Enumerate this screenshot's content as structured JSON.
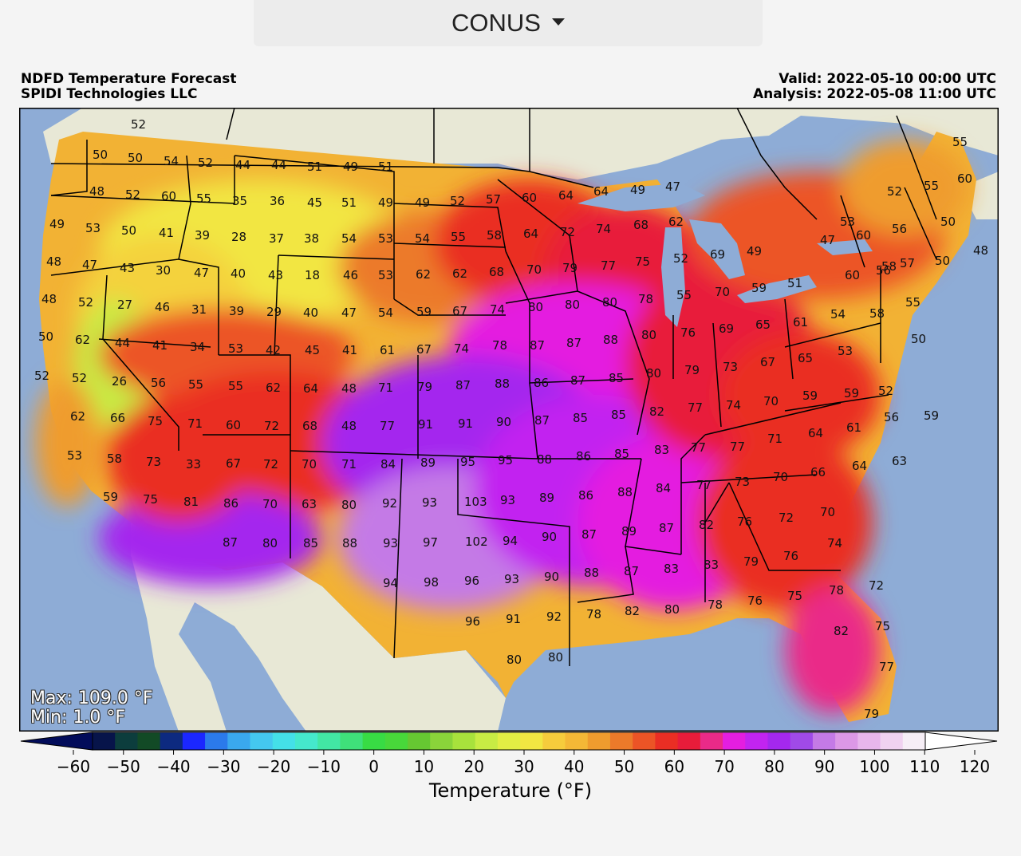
{
  "region_selector": {
    "label": "CONUS"
  },
  "header": {
    "title": "NDFD Temperature Forecast",
    "provider": "SPIDI Technologies LLC",
    "valid": "Valid: 2022-05-10 00:00 UTC",
    "analysis": "Analysis: 2022-05-08 11:00 UTC"
  },
  "stats": {
    "max": "Max: 109.0 °F",
    "min": "Min: 1.0 °F"
  },
  "colorbar": {
    "title": "Temperature (°F)",
    "ticks": [
      "−60",
      "−50",
      "−40",
      "−30",
      "−20",
      "−10",
      "0",
      "10",
      "20",
      "30",
      "40",
      "50",
      "60",
      "70",
      "80",
      "90",
      "100",
      "110",
      "120"
    ],
    "colors": [
      "#07144a",
      "#0c3d3d",
      "#124a26",
      "#0d2a80",
      "#1b27ff",
      "#2b7aeb",
      "#3aa8ee",
      "#44c8ef",
      "#44e0e8",
      "#45e8cc",
      "#42e6a4",
      "#3fe07a",
      "#38dc44",
      "#48d83a",
      "#66c832",
      "#8ad43a",
      "#a8e23c",
      "#c8ec44",
      "#e2ee44",
      "#f2e642",
      "#f6cc3c",
      "#f4b836",
      "#ef9c2e",
      "#ec7a2a",
      "#ec5426",
      "#ea2e24",
      "#e81c3a",
      "#ea2a88",
      "#e41ee0",
      "#c224f0",
      "#a428ee",
      "#a04ae8",
      "#c47ae6",
      "#dc98e6",
      "#e8b6ec",
      "#f0d2f0",
      "#f6eef6"
    ],
    "min_color": "#020c5a",
    "max_color": "#ffffff"
  },
  "map": {
    "colors": {
      "ocean": "#8eacd6",
      "land_background": "#e8e8d6",
      "frame": "#000000"
    },
    "temperature_labels": [
      [
        "52",
        0,
        0
      ],
      [
        "50",
        0,
        0
      ],
      [
        "50",
        0,
        0
      ],
      [
        "54",
        0,
        0
      ],
      [
        "52",
        0,
        0
      ],
      [
        "44",
        0,
        0
      ],
      [
        "44",
        0,
        0
      ],
      [
        "51",
        0,
        0
      ],
      [
        "49",
        0,
        0
      ],
      [
        "51",
        0,
        0
      ],
      [
        "48",
        0,
        0
      ],
      [
        "52",
        0,
        0
      ],
      [
        "60",
        0,
        0
      ],
      [
        "55",
        0,
        0
      ],
      [
        "35",
        0,
        0
      ],
      [
        "36",
        0,
        0
      ],
      [
        "45",
        0,
        0
      ],
      [
        "51",
        0,
        0
      ],
      [
        "49",
        0,
        0
      ],
      [
        "49",
        0,
        0
      ],
      [
        "52",
        0,
        0
      ],
      [
        "57",
        0,
        0
      ],
      [
        "60",
        0,
        0
      ],
      [
        "64",
        0,
        0
      ],
      [
        "64",
        0,
        0
      ],
      [
        "49",
        0,
        0
      ],
      [
        "47",
        0,
        0
      ],
      [
        "52",
        0,
        0
      ],
      [
        "55",
        0,
        0
      ],
      [
        "60",
        0,
        0
      ],
      [
        "55",
        0,
        0
      ],
      [
        "49",
        0,
        0
      ],
      [
        "53",
        0,
        0
      ],
      [
        "50",
        0,
        0
      ],
      [
        "41",
        0,
        0
      ],
      [
        "39",
        0,
        0
      ],
      [
        "28",
        0,
        0
      ],
      [
        "37",
        0,
        0
      ],
      [
        "38",
        0,
        0
      ],
      [
        "54",
        0,
        0
      ],
      [
        "53",
        0,
        0
      ],
      [
        "54",
        0,
        0
      ],
      [
        "55",
        0,
        0
      ],
      [
        "58",
        0,
        0
      ],
      [
        "64",
        0,
        0
      ],
      [
        "72",
        0,
        0
      ],
      [
        "74",
        0,
        0
      ],
      [
        "68",
        0,
        0
      ],
      [
        "62",
        0,
        0
      ],
      [
        "53",
        0,
        0
      ],
      [
        "56",
        0,
        0
      ],
      [
        "50",
        0,
        0
      ],
      [
        "48",
        0,
        0
      ],
      [
        "47",
        0,
        0
      ],
      [
        "43",
        0,
        0
      ],
      [
        "30",
        0,
        0
      ],
      [
        "47",
        0,
        0
      ],
      [
        "40",
        0,
        0
      ],
      [
        "43",
        0,
        0
      ],
      [
        "18",
        0,
        0
      ],
      [
        "46",
        0,
        0
      ],
      [
        "53",
        0,
        0
      ],
      [
        "62",
        0,
        0
      ],
      [
        "62",
        0,
        0
      ],
      [
        "68",
        0,
        0
      ],
      [
        "70",
        0,
        0
      ],
      [
        "79",
        0,
        0
      ],
      [
        "77",
        0,
        0
      ],
      [
        "75",
        0,
        0
      ],
      [
        "52",
        0,
        0
      ],
      [
        "69",
        0,
        0
      ],
      [
        "49",
        0,
        0
      ],
      [
        "47",
        0,
        0
      ],
      [
        "60",
        0,
        0
      ],
      [
        "56",
        0,
        0
      ],
      [
        "57",
        0,
        0
      ],
      [
        "50",
        0,
        0
      ],
      [
        "48",
        0,
        0
      ],
      [
        "48",
        0,
        0
      ],
      [
        "52",
        0,
        0
      ],
      [
        "27",
        0,
        0
      ],
      [
        "46",
        0,
        0
      ],
      [
        "31",
        0,
        0
      ],
      [
        "39",
        0,
        0
      ],
      [
        "29",
        0,
        0
      ],
      [
        "40",
        0,
        0
      ],
      [
        "47",
        0,
        0
      ],
      [
        "54",
        0,
        0
      ],
      [
        "59",
        0,
        0
      ],
      [
        "67",
        0,
        0
      ],
      [
        "74",
        0,
        0
      ],
      [
        "80",
        0,
        0
      ],
      [
        "80",
        0,
        0
      ],
      [
        "80",
        0,
        0
      ],
      [
        "78",
        0,
        0
      ],
      [
        "55",
        0,
        0
      ],
      [
        "70",
        0,
        0
      ],
      [
        "59",
        0,
        0
      ],
      [
        "51",
        0,
        0
      ],
      [
        "60",
        0,
        0
      ],
      [
        "58",
        0,
        0
      ],
      [
        "55",
        0,
        0
      ],
      [
        "50",
        0,
        0
      ],
      [
        "62",
        0,
        0
      ],
      [
        "44",
        0,
        0
      ],
      [
        "41",
        0,
        0
      ],
      [
        "34",
        0,
        0
      ],
      [
        "53",
        0,
        0
      ],
      [
        "42",
        0,
        0
      ],
      [
        "45",
        0,
        0
      ],
      [
        "41",
        0,
        0
      ],
      [
        "61",
        0,
        0
      ],
      [
        "67",
        0,
        0
      ],
      [
        "74",
        0,
        0
      ],
      [
        "78",
        0,
        0
      ],
      [
        "87",
        0,
        0
      ],
      [
        "87",
        0,
        0
      ],
      [
        "88",
        0,
        0
      ],
      [
        "80",
        0,
        0
      ],
      [
        "76",
        0,
        0
      ],
      [
        "69",
        0,
        0
      ],
      [
        "65",
        0,
        0
      ],
      [
        "61",
        0,
        0
      ],
      [
        "54",
        0,
        0
      ],
      [
        "58",
        0,
        0
      ],
      [
        "50",
        0,
        0
      ],
      [
        "52",
        0,
        0
      ],
      [
        "52",
        0,
        0
      ],
      [
        "26",
        0,
        0
      ],
      [
        "56",
        0,
        0
      ],
      [
        "55",
        0,
        0
      ],
      [
        "55",
        0,
        0
      ],
      [
        "62",
        0,
        0
      ],
      [
        "64",
        0,
        0
      ],
      [
        "48",
        0,
        0
      ],
      [
        "71",
        0,
        0
      ],
      [
        "79",
        0,
        0
      ],
      [
        "87",
        0,
        0
      ],
      [
        "88",
        0,
        0
      ],
      [
        "86",
        0,
        0
      ],
      [
        "87",
        0,
        0
      ],
      [
        "85",
        0,
        0
      ],
      [
        "80",
        0,
        0
      ],
      [
        "79",
        0,
        0
      ],
      [
        "73",
        0,
        0
      ],
      [
        "67",
        0,
        0
      ],
      [
        "65",
        0,
        0
      ],
      [
        "53",
        0,
        0
      ],
      [
        "62",
        0,
        0
      ],
      [
        "66",
        0,
        0
      ],
      [
        "75",
        0,
        0
      ],
      [
        "71",
        0,
        0
      ],
      [
        "60",
        0,
        0
      ],
      [
        "72",
        0,
        0
      ],
      [
        "68",
        0,
        0
      ],
      [
        "48",
        0,
        0
      ],
      [
        "77",
        0,
        0
      ],
      [
        "91",
        0,
        0
      ],
      [
        "91",
        0,
        0
      ],
      [
        "90",
        0,
        0
      ],
      [
        "87",
        0,
        0
      ],
      [
        "85",
        0,
        0
      ],
      [
        "85",
        0,
        0
      ],
      [
        "82",
        0,
        0
      ],
      [
        "77",
        0,
        0
      ],
      [
        "74",
        0,
        0
      ],
      [
        "70",
        0,
        0
      ],
      [
        "59",
        0,
        0
      ],
      [
        "59",
        0,
        0
      ],
      [
        "52",
        0,
        0
      ],
      [
        "56",
        0,
        0
      ],
      [
        "59",
        0,
        0
      ],
      [
        "53",
        0,
        0
      ],
      [
        "58",
        0,
        0
      ],
      [
        "73",
        0,
        0
      ],
      [
        "33",
        0,
        0
      ],
      [
        "67",
        0,
        0
      ],
      [
        "72",
        0,
        0
      ],
      [
        "70",
        0,
        0
      ],
      [
        "71",
        0,
        0
      ],
      [
        "84",
        0,
        0
      ],
      [
        "89",
        0,
        0
      ],
      [
        "95",
        0,
        0
      ],
      [
        "95",
        0,
        0
      ],
      [
        "88",
        0,
        0
      ],
      [
        "86",
        0,
        0
      ],
      [
        "85",
        0,
        0
      ],
      [
        "83",
        0,
        0
      ],
      [
        "77",
        0,
        0
      ],
      [
        "77",
        0,
        0
      ],
      [
        "71",
        0,
        0
      ],
      [
        "64",
        0,
        0
      ],
      [
        "61",
        0,
        0
      ],
      [
        "59",
        0,
        0
      ],
      [
        "75",
        0,
        0
      ],
      [
        "81",
        0,
        0
      ],
      [
        "86",
        0,
        0
      ],
      [
        "70",
        0,
        0
      ],
      [
        "63",
        0,
        0
      ],
      [
        "80",
        0,
        0
      ],
      [
        "92",
        0,
        0
      ],
      [
        "93",
        0,
        0
      ],
      [
        "103",
        0,
        0
      ],
      [
        "93",
        0,
        0
      ],
      [
        "89",
        0,
        0
      ],
      [
        "86",
        0,
        0
      ],
      [
        "88",
        0,
        0
      ],
      [
        "84",
        0,
        0
      ],
      [
        "77",
        0,
        0
      ],
      [
        "73",
        0,
        0
      ],
      [
        "70",
        0,
        0
      ],
      [
        "66",
        0,
        0
      ],
      [
        "64",
        0,
        0
      ],
      [
        "63",
        0,
        0
      ],
      [
        "87",
        0,
        0
      ],
      [
        "80",
        0,
        0
      ],
      [
        "85",
        0,
        0
      ],
      [
        "88",
        0,
        0
      ],
      [
        "93",
        0,
        0
      ],
      [
        "97",
        0,
        0
      ],
      [
        "102",
        0,
        0
      ],
      [
        "94",
        0,
        0
      ],
      [
        "90",
        0,
        0
      ],
      [
        "87",
        0,
        0
      ],
      [
        "89",
        0,
        0
      ],
      [
        "87",
        0,
        0
      ],
      [
        "82",
        0,
        0
      ],
      [
        "76",
        0,
        0
      ],
      [
        "72",
        0,
        0
      ],
      [
        "70",
        0,
        0
      ],
      [
        "94",
        0,
        0
      ],
      [
        "98",
        0,
        0
      ],
      [
        "96",
        0,
        0
      ],
      [
        "93",
        0,
        0
      ],
      [
        "90",
        0,
        0
      ],
      [
        "88",
        0,
        0
      ],
      [
        "87",
        0,
        0
      ],
      [
        "83",
        0,
        0
      ],
      [
        "83",
        0,
        0
      ],
      [
        "79",
        0,
        0
      ],
      [
        "76",
        0,
        0
      ],
      [
        "74",
        0,
        0
      ],
      [
        "96",
        0,
        0
      ],
      [
        "91",
        0,
        0
      ],
      [
        "92",
        0,
        0
      ],
      [
        "78",
        0,
        0
      ],
      [
        "82",
        0,
        0
      ],
      [
        "80",
        0,
        0
      ],
      [
        "78",
        0,
        0
      ],
      [
        "76",
        0,
        0
      ],
      [
        "75",
        0,
        0
      ],
      [
        "78",
        0,
        0
      ],
      [
        "72",
        0,
        0
      ],
      [
        "80",
        0,
        0
      ],
      [
        "80",
        0,
        0
      ],
      [
        "82",
        0,
        0
      ],
      [
        "75",
        0,
        0
      ],
      [
        "77",
        0,
        0
      ],
      [
        "79",
        0,
        0
      ]
    ]
  }
}
